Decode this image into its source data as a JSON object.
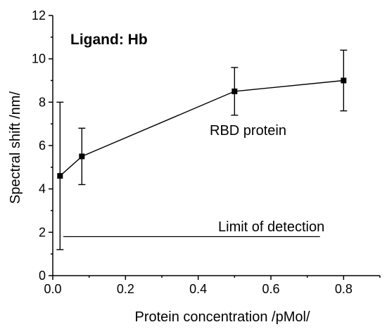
{
  "chart_data": {
    "type": "line",
    "xlabel": "Protein concentration /pMol/",
    "ylabel": "Spectral shift /nm/",
    "xlim": [
      0,
      0.9
    ],
    "ylim": [
      0,
      12
    ],
    "x_ticks": [
      0.0,
      0.2,
      0.4,
      0.6,
      0.8
    ],
    "x_tick_labels": [
      "0.0",
      "0.2",
      "0.4",
      "0.6",
      "0.8"
    ],
    "y_ticks": [
      0,
      2,
      4,
      6,
      8,
      10,
      12
    ],
    "y_tick_labels": [
      "0",
      "2",
      "4",
      "6",
      "8",
      "10",
      "12"
    ],
    "grid": false,
    "series": [
      {
        "name": "RBD protein",
        "color": "#000000",
        "marker": "square",
        "x": [
          0.02,
          0.08,
          0.5,
          0.8
        ],
        "y": [
          4.6,
          5.5,
          8.5,
          9.0
        ],
        "error": [
          3.4,
          1.3,
          1.1,
          1.4
        ]
      }
    ],
    "reference_line": {
      "label": "Limit of detection",
      "y": 1.8,
      "x_start": 0.0,
      "x_end": 0.735
    },
    "annotations": {
      "panel_label": "Ligand: Hb",
      "series_label": "RBD protein",
      "limit_label": "Limit of detection"
    }
  }
}
